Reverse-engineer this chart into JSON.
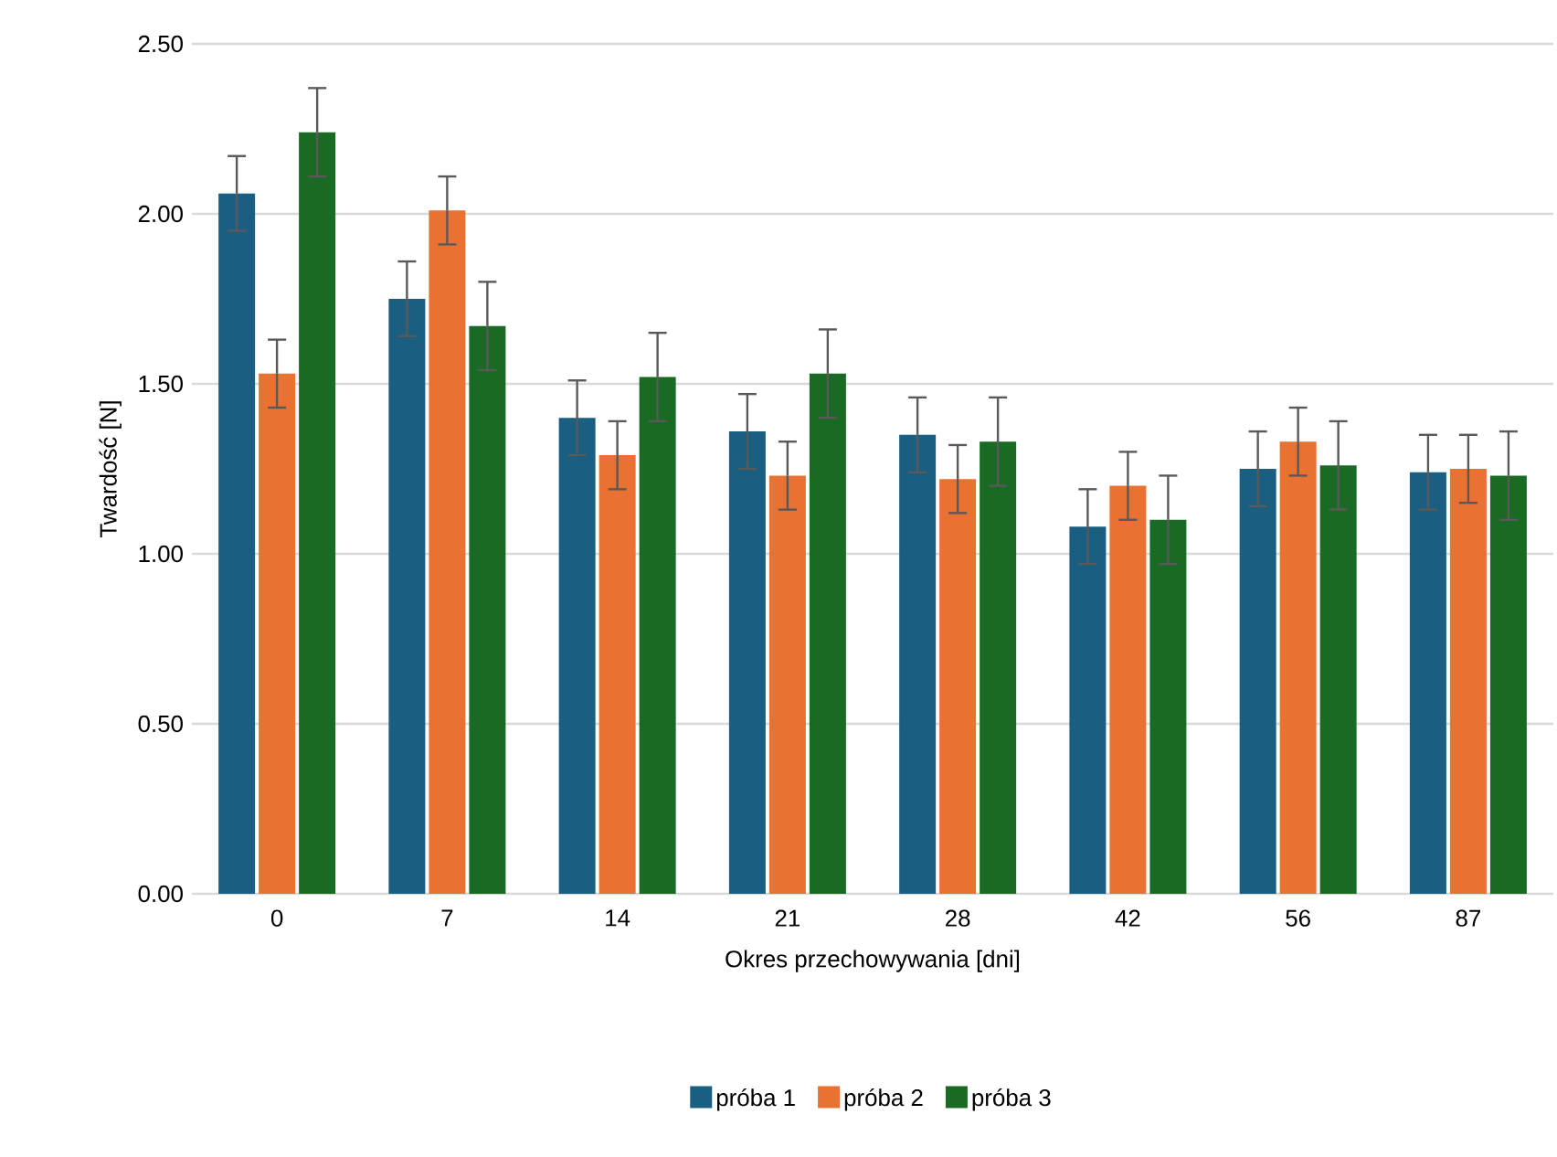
{
  "chart_data": {
    "type": "bar",
    "xlabel": "Okres przechowywania [dni]",
    "ylabel": "Twardość [N]",
    "categories": [
      "0",
      "7",
      "14",
      "21",
      "28",
      "42",
      "56",
      "87"
    ],
    "series": [
      {
        "name": "próba 1",
        "color": "#1a5f82",
        "values": [
          2.06,
          1.75,
          1.4,
          1.36,
          1.35,
          1.08,
          1.25,
          1.24
        ],
        "errors": [
          0.11,
          0.11,
          0.11,
          0.11,
          0.11,
          0.11,
          0.11,
          0.11
        ]
      },
      {
        "name": "próba 2",
        "color": "#e97132",
        "values": [
          1.53,
          2.01,
          1.29,
          1.23,
          1.22,
          1.2,
          1.33,
          1.25
        ],
        "errors": [
          0.1,
          0.1,
          0.1,
          0.1,
          0.1,
          0.1,
          0.1,
          0.1
        ]
      },
      {
        "name": "próba 3",
        "color": "#196b24",
        "values": [
          2.24,
          1.67,
          1.52,
          1.53,
          1.33,
          1.1,
          1.26,
          1.23
        ],
        "errors": [
          0.13,
          0.13,
          0.13,
          0.13,
          0.13,
          0.13,
          0.13,
          0.13
        ]
      }
    ],
    "ylim": [
      0,
      2.5
    ],
    "yticks": [
      {
        "value": 0,
        "label": "0.00"
      },
      {
        "value": 0.5,
        "label": "0.50"
      },
      {
        "value": 1,
        "label": "1.00"
      },
      {
        "value": 1.5,
        "label": "1.50"
      },
      {
        "value": 2,
        "label": "2.00"
      },
      {
        "value": 2.5,
        "label": "2.50"
      }
    ],
    "grid": "y",
    "legend": "bottom"
  }
}
